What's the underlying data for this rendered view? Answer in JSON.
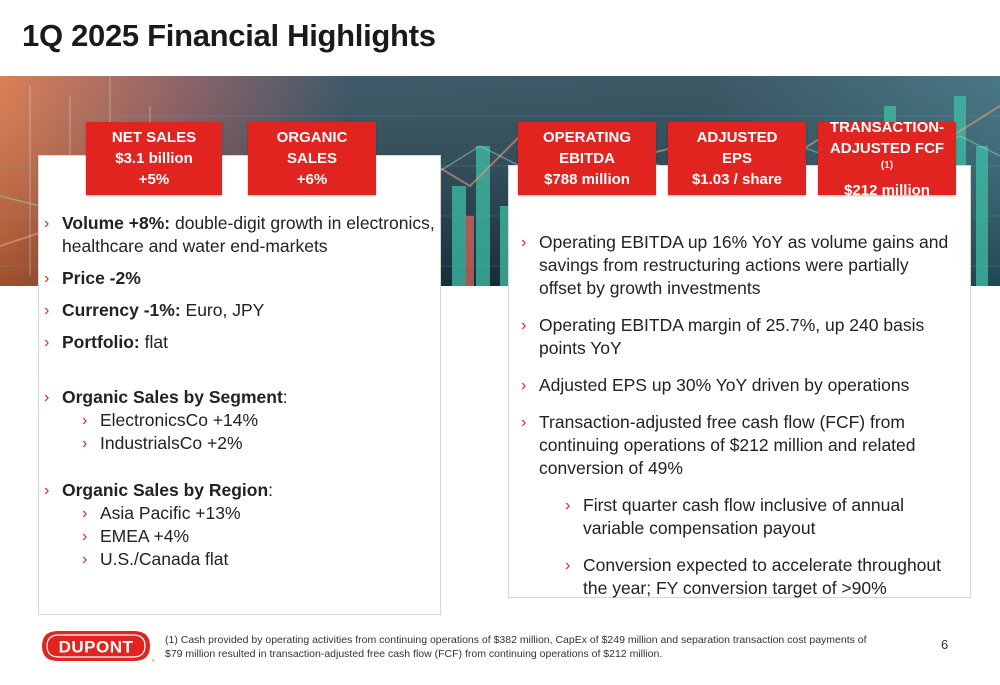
{
  "title": "1Q 2025 Financial Highlights",
  "colors": {
    "accent": "#e1241f",
    "banner_dark": "#1b3440",
    "chart_teal": "#3fbfa6"
  },
  "kpis": [
    {
      "lines": [
        "NET SALES",
        "$3.1 billion",
        "+5%"
      ]
    },
    {
      "lines": [
        "ORGANIC",
        "SALES",
        "+6%"
      ]
    },
    {
      "lines": [
        "OPERATING",
        "EBITDA",
        "$788 million"
      ]
    },
    {
      "lines": [
        "ADJUSTED",
        "EPS",
        "$1.03 / share"
      ]
    },
    {
      "lines": [
        "TRANSACTION-",
        "ADJUSTED FCF",
        "$212 million"
      ],
      "superscript": "(1)"
    }
  ],
  "left": {
    "volume_label": "Volume +8%:",
    "volume_text": " double-digit growth in electronics, healthcare and water end-markets",
    "price_label": "Price -2%",
    "currency_label": "Currency -1%:",
    "currency_text": " Euro, JPY",
    "portfolio_label": "Portfolio:",
    "portfolio_text": " flat",
    "segment_label": "Organic Sales by Segment",
    "segment_colon": ":",
    "segments": [
      "ElectronicsCo +14%",
      "IndustrialsCo +2%"
    ],
    "region_label": "Organic Sales by Region",
    "region_colon": ":",
    "regions": [
      "Asia Pacific +13%",
      "EMEA +4%",
      "U.S./Canada flat"
    ]
  },
  "right": {
    "bullets": [
      "Operating EBITDA up 16% YoY as volume gains and savings from restructuring actions were partially offset by growth investments",
      "Operating EBITDA margin of 25.7%, up 240 basis points YoY",
      "Adjusted EPS up 30% YoY driven by operations",
      "Transaction-adjusted free cash flow (FCF) from continuing operations of $212 million and related conversion of 49%"
    ],
    "sub_bullets": [
      "First quarter cash flow inclusive of annual variable compensation payout",
      "Conversion expected to accelerate throughout the year; FY conversion target of >90%"
    ]
  },
  "footnote": "(1) Cash provided by operating activities from continuing operations of $382 million, CapEx of $249 million and separation transaction cost payments of $79 million resulted in transaction-adjusted free cash flow (FCF) from continuing operations of $212 million.",
  "page_number": "6",
  "logo_text": "DUPONT",
  "logo_tm": "™",
  "bullet_glyph": "›"
}
